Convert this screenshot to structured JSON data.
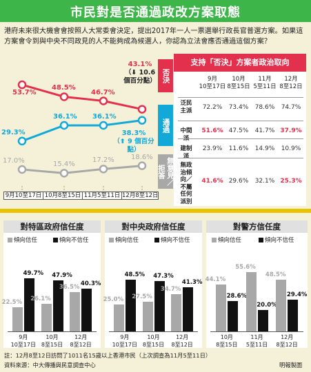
{
  "header": {
    "title": "市民對是否通過政改方案取態"
  },
  "question": "港府未來很大機會會按照人大常委會決定，提出2017年一人一票選舉行政長官普選方案。如果這方案會令到與中央不同政見的人不能夠成為候選人，你認為立法會應否通過這個方案？",
  "colors": {
    "red": "#e2304d",
    "cyan": "#12a8d8",
    "gray": "#a8a8a8",
    "black": "#111111",
    "header_green": "#3eb548",
    "separator_yellow": "#e9c300"
  },
  "side_tabs": {
    "veto": "否決",
    "pass": "通過",
    "none": "無意見／拒答"
  },
  "annotations": {
    "veto_label": "43.1%",
    "veto_change": "（⬇ 10.6 個百分點）",
    "pass_label": "38.3%",
    "pass_change": "（⬆ 9 個百分點）"
  },
  "table": {
    "title": "支持「否決」方案者政治取向",
    "col_headers": [
      {
        "month": "9月",
        "date": "10至17日"
      },
      {
        "month": "10月",
        "date": "8至15日"
      },
      {
        "month": "11月",
        "date": "5至11日"
      },
      {
        "month": "12月",
        "date": "8至12日"
      }
    ],
    "rows": [
      {
        "label": "泛民主派",
        "values": [
          "72.2%",
          "73.4%",
          "78.6%",
          "74.7%"
        ],
        "highlight": [
          false,
          false,
          false,
          false
        ]
      },
      {
        "label": "中間派",
        "values": [
          "51.6%",
          "47.5%",
          "41.7%",
          "37.9%"
        ],
        "highlight": [
          true,
          false,
          false,
          true
        ]
      },
      {
        "label": "建制派",
        "values": [
          "23.9%",
          "11.6%",
          "14.9%",
          "10.9%"
        ],
        "highlight": [
          false,
          false,
          false,
          false
        ]
      },
      {
        "label": "無政治傾向／不屬任何派別",
        "values": [
          "41.6%",
          "29.6%",
          "32.1%",
          "25.3%"
        ],
        "highlight": [
          true,
          false,
          false,
          true
        ]
      }
    ]
  },
  "line_dates": [
    "9月10至17日",
    "10月8至15日",
    "11月5至11日",
    "12月8至12日"
  ],
  "bar_legend": {
    "trust": "傾向信任",
    "distrust": "傾向不信任"
  },
  "footer": {
    "note": "註：12月8至12日訪問了1011名15歲以上香港市民（上次調查為11月5至11日）",
    "source": "資料來源：中大傳播與民意調查中心",
    "credit": "明報製圖"
  },
  "chart_data": [
    {
      "type": "line",
      "title": "市民對是否通過政改方案取態",
      "x": [
        "9月10至17日",
        "10月8至15日",
        "11月5至11日",
        "12月8至12日"
      ],
      "series": [
        {
          "name": "否決",
          "values": [
            53.7,
            48.5,
            46.7,
            43.1
          ],
          "labels": [
            "53.7%",
            "48.5%",
            "46.7%",
            "43.1%"
          ]
        },
        {
          "name": "通過",
          "values": [
            29.3,
            36.1,
            36.1,
            38.3
          ],
          "labels": [
            "29.3%",
            "36.1%",
            "36.1%",
            "38.3%"
          ]
        },
        {
          "name": "無意見／拒答",
          "values": [
            17.0,
            15.4,
            17.2,
            18.6
          ],
          "labels": [
            "17.0%",
            "15.4%",
            "17.2%",
            "18.6%"
          ]
        }
      ]
    },
    {
      "type": "bar",
      "title": "對特區政府信任度",
      "categories": [
        {
          "month": "9月",
          "date": "10至17日"
        },
        {
          "month": "10月",
          "date": "8至15日"
        },
        {
          "month": "12月",
          "date": "8至12日"
        }
      ],
      "series": [
        {
          "name": "傾向信任",
          "values": [
            22.5,
            26.1,
            36.5
          ],
          "labels": [
            "22.5%",
            "26.1%",
            "36.5%"
          ]
        },
        {
          "name": "傾向不信任",
          "values": [
            49.7,
            47.9,
            40.3
          ],
          "labels": [
            "49.7%",
            "47.9%",
            "40.3%"
          ]
        }
      ]
    },
    {
      "type": "bar",
      "title": "對中央政府信任度",
      "categories": [
        {
          "month": "9月",
          "date": "10至17日"
        },
        {
          "month": "10月",
          "date": "8至15日"
        },
        {
          "month": "12月",
          "date": "8至12日"
        }
      ],
      "series": [
        {
          "name": "傾向信任",
          "values": [
            25.0,
            27.5,
            34.7
          ],
          "labels": [
            "25.0%",
            "27.5%",
            "34.7%"
          ]
        },
        {
          "name": "傾向不信任",
          "values": [
            48.5,
            47.3,
            41.3
          ],
          "labels": [
            "48.5%",
            "47.3%",
            "41.3%"
          ]
        }
      ]
    },
    {
      "type": "bar",
      "title": "對警方信任度",
      "categories": [
        {
          "month": "10月",
          "date": "8至15日"
        },
        {
          "month": "11月",
          "date": "5至11日"
        },
        {
          "month": "12月",
          "date": "8至12日"
        }
      ],
      "series": [
        {
          "name": "傾向信任",
          "values": [
            44.1,
            55.6,
            48.5
          ],
          "labels": [
            "44.1%",
            "55.6%",
            "48.5%"
          ]
        },
        {
          "name": "傾向不信任",
          "values": [
            28.6,
            20.0,
            29.4
          ],
          "labels": [
            "28.6%",
            "20.0%",
            "29.4%"
          ]
        }
      ]
    }
  ]
}
